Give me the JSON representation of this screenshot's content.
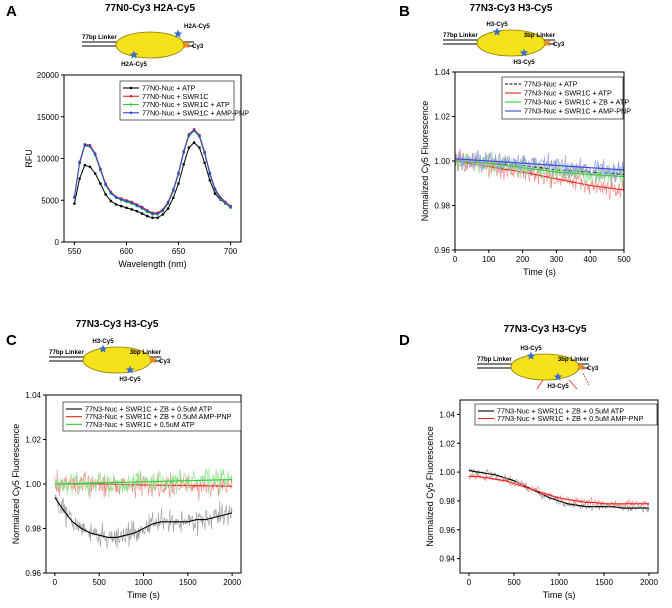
{
  "colors": {
    "black": "#000000",
    "red": "#e8241f",
    "green": "#33cc33",
    "blue": "#3344dd",
    "star_blue": "#3a6ec6",
    "star_orange": "#f08a1e",
    "nucleosome": "#f5e21b"
  },
  "panels": [
    {
      "letter": "A",
      "title": "77N0-Cy3 H2A-Cy5",
      "diagram": {
        "left_label": "77bp Linker",
        "right_label": "",
        "star_top_label": "H2A-Cy5",
        "star_bottom_label": "H2A-Cy5",
        "cy3_label": "Cy3"
      }
    },
    {
      "letter": "B",
      "title": "77N3-Cy3 H3-Cy5",
      "diagram": {
        "left_label": "77bp Linker",
        "right_label": "3bp Linker",
        "star_top_label": "H3-Cy5",
        "star_bottom_label": "H3-Cy5",
        "cy3_label": "Cy3"
      }
    },
    {
      "letter": "C",
      "title": "77N3-Cy3 H3-Cy5",
      "diagram": {
        "left_label": "77bp Linker",
        "right_label": "3bp Linker",
        "star_top_label": "H3-Cy5",
        "star_bottom_label": "H3-Cy5",
        "cy3_label": "Cy3"
      }
    },
    {
      "letter": "D",
      "title": "77N3-Cy3 H3-Cy5",
      "diagram": {
        "left_label": "77bp Linker",
        "right_label": "3bp Linker",
        "star_top_label": "H3-Cy5",
        "star_bottom_label": "H3-Cy5",
        "cy3_label": "Cy3"
      }
    }
  ],
  "chart_data": [
    {
      "panel": "A",
      "type": "line",
      "xlabel": "Wavelength (nm)",
      "ylabel": "RFU",
      "xlim": [
        540,
        710
      ],
      "ylim": [
        0,
        20000
      ],
      "xticks": [
        550,
        600,
        650,
        700
      ],
      "yticks": [
        0,
        5000,
        10000,
        15000,
        20000
      ],
      "legend_position": "top-left",
      "x": [
        550,
        555,
        560,
        565,
        570,
        575,
        580,
        585,
        590,
        595,
        600,
        605,
        610,
        615,
        620,
        625,
        630,
        635,
        640,
        645,
        650,
        655,
        660,
        665,
        670,
        675,
        680,
        685,
        690,
        695,
        700
      ],
      "series": [
        {
          "name": "77N0-Nuc + ATP",
          "color": "#000000",
          "values": [
            4600,
            7600,
            9200,
            9000,
            8200,
            7000,
            5700,
            4900,
            4500,
            4300,
            4100,
            3900,
            3700,
            3400,
            3100,
            2900,
            2900,
            3300,
            4000,
            5300,
            7000,
            9300,
            11300,
            11900,
            11300,
            9500,
            7400,
            5800,
            5100,
            4600,
            4300
          ]
        },
        {
          "name": "77N0-Nuc + SWR1C",
          "color": "#e8241f",
          "values": [
            5400,
            9600,
            11700,
            11600,
            10600,
            8800,
            7000,
            6000,
            5400,
            5200,
            5000,
            4800,
            4500,
            4200,
            3800,
            3500,
            3500,
            3900,
            4800,
            6300,
            8300,
            10900,
            12900,
            13500,
            12800,
            10800,
            8300,
            6400,
            5400,
            4800,
            4300
          ]
        },
        {
          "name": "77N0-Nuc + SWR1C + ATP",
          "color": "#33cc33",
          "values": [
            5300,
            9400,
            11500,
            11400,
            10400,
            8600,
            6800,
            5800,
            5300,
            5000,
            4800,
            4600,
            4300,
            4000,
            3600,
            3300,
            3300,
            3700,
            4600,
            6100,
            8100,
            10700,
            12700,
            13300,
            12600,
            10600,
            8100,
            6200,
            5200,
            4600,
            4100
          ]
        },
        {
          "name": "77N0-Nuc + SWR1C + AMP-PNP",
          "color": "#3344dd",
          "values": [
            5350,
            9500,
            11600,
            11500,
            10500,
            8700,
            6900,
            5900,
            5350,
            5100,
            4900,
            4700,
            4400,
            4100,
            3700,
            3400,
            3400,
            3800,
            4700,
            6200,
            8200,
            10800,
            12800,
            13400,
            12700,
            10700,
            8200,
            6300,
            5300,
            4700,
            4200
          ]
        }
      ]
    },
    {
      "panel": "B",
      "type": "line",
      "xlabel": "Time (s)",
      "ylabel": "Normalized Cy5 Fluorescence",
      "xlim": [
        0,
        500
      ],
      "ylim": [
        0.96,
        1.04
      ],
      "xticks": [
        0,
        100,
        200,
        300,
        400,
        500
      ],
      "yticks": [
        0.96,
        0.98,
        1.0,
        1.02,
        1.04
      ],
      "legend_position": "top-right",
      "series": [
        {
          "name": "77N3-Nuc + ATP",
          "color": "#000000",
          "dashed": true,
          "x": [
            0,
            100,
            200,
            300,
            400,
            500
          ],
          "values": [
            1.0,
            0.999,
            0.998,
            0.996,
            0.995,
            0.994
          ]
        },
        {
          "name": "77N3-Nuc + SWR1C + ATP",
          "color": "#e8241f",
          "x": [
            0,
            100,
            200,
            300,
            400,
            500
          ],
          "values": [
            1.0,
            0.9975,
            0.995,
            0.992,
            0.989,
            0.987
          ]
        },
        {
          "name": "77N3-Nuc + SWR1C + ZB + ATP",
          "color": "#33cc33",
          "x": [
            0,
            100,
            200,
            300,
            400,
            500
          ],
          "values": [
            1.0,
            0.999,
            0.997,
            0.995,
            0.994,
            0.993
          ]
        },
        {
          "name": "77N3-Nuc + SWR1C + AMP-PNP",
          "color": "#3344dd",
          "x": [
            0,
            100,
            200,
            300,
            400,
            500
          ],
          "values": [
            1.001,
            1.0,
            0.999,
            0.998,
            0.997,
            0.996
          ]
        }
      ]
    },
    {
      "panel": "C",
      "type": "line",
      "xlabel": "Time (s)",
      "ylabel": "Normalized Cy5 Fluorescence",
      "xlim": [
        -100,
        2100
      ],
      "ylim": [
        0.96,
        1.04
      ],
      "xticks": [
        0,
        500,
        1000,
        1500,
        2000
      ],
      "yticks": [
        0.96,
        0.98,
        1.0,
        1.02,
        1.04
      ],
      "legend_position": "top",
      "series": [
        {
          "name": "77N3-Nuc + SWR1C + ZB + 0.5uM ATP",
          "color": "#000000",
          "x": [
            0,
            100,
            200,
            300,
            400,
            500,
            600,
            700,
            800,
            900,
            1000,
            1100,
            1200,
            1300,
            1400,
            1500,
            1600,
            1700,
            1800,
            1900,
            2000
          ],
          "values": [
            0.994,
            0.988,
            0.983,
            0.98,
            0.978,
            0.977,
            0.976,
            0.976,
            0.977,
            0.978,
            0.98,
            0.982,
            0.983,
            0.983,
            0.983,
            0.983,
            0.984,
            0.984,
            0.985,
            0.986,
            0.987
          ]
        },
        {
          "name": "77N3-Nuc + SWR1C + ZB + 0.5uM AMP-PNP",
          "color": "#e8241f",
          "x": [
            0,
            500,
            1000,
            1500,
            2000
          ],
          "values": [
            1.0,
            1.0,
            0.9995,
            0.9993,
            0.999
          ]
        },
        {
          "name": "77N3-Nuc + SWR1C + 0.5uM ATP",
          "color": "#33cc33",
          "x": [
            0,
            500,
            1000,
            1500,
            2000
          ],
          "values": [
            1.0,
            1.0005,
            1.001,
            1.0015,
            1.002
          ]
        }
      ]
    },
    {
      "panel": "D",
      "type": "line",
      "xlabel": "Time (s)",
      "ylabel": "Normalized Cy5 Fluorescence",
      "xlim": [
        -100,
        2100
      ],
      "ylim": [
        0.93,
        1.05
      ],
      "xticks": [
        0,
        500,
        1000,
        1500,
        2000
      ],
      "yticks": [
        0.94,
        0.96,
        0.98,
        1.0,
        1.02,
        1.04
      ],
      "legend_position": "top",
      "series": [
        {
          "name": "77N3-Nuc + SWR1C + ZB + 0.5uM ATP",
          "color": "#000000",
          "x": [
            0,
            100,
            200,
            300,
            400,
            500,
            600,
            700,
            800,
            900,
            1000,
            1100,
            1200,
            1300,
            1400,
            1500,
            1600,
            1700,
            1800,
            1900,
            2000
          ],
          "values": [
            1.001,
            1.0,
            0.999,
            0.998,
            0.996,
            0.994,
            0.991,
            0.988,
            0.985,
            0.982,
            0.98,
            0.978,
            0.977,
            0.976,
            0.976,
            0.976,
            0.976,
            0.975,
            0.975,
            0.975,
            0.975
          ]
        },
        {
          "name": "77N3-Nuc + SWR1C + ZB + 0.5uM AMP-PNP",
          "color": "#e8241f",
          "x": [
            0,
            100,
            200,
            300,
            400,
            500,
            600,
            700,
            800,
            900,
            1000,
            1100,
            1200,
            1300,
            1400,
            1500,
            1600,
            1700,
            1800,
            1900,
            2000
          ],
          "values": [
            0.997,
            0.997,
            0.996,
            0.995,
            0.994,
            0.992,
            0.99,
            0.988,
            0.986,
            0.984,
            0.982,
            0.981,
            0.98,
            0.979,
            0.979,
            0.978,
            0.978,
            0.978,
            0.978,
            0.978,
            0.978
          ]
        }
      ]
    }
  ]
}
